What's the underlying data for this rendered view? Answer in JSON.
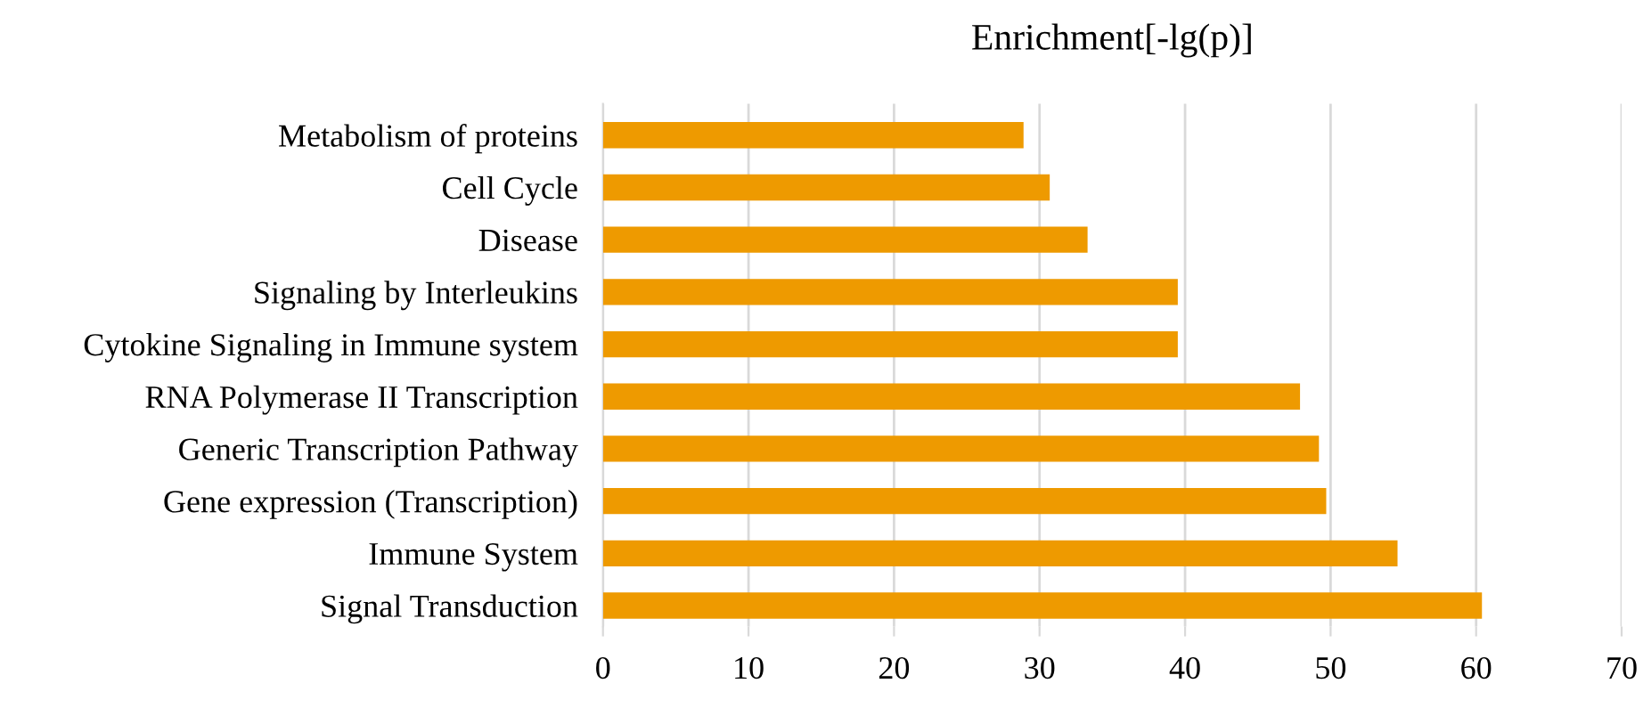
{
  "chart_data": {
    "type": "bar",
    "orientation": "horizontal",
    "title": "Enrichment[-lg(p)]",
    "categories": [
      "Metabolism of proteins",
      "Cell Cycle",
      "Disease",
      "Signaling by Interleukins",
      "Cytokine Signaling in Immune system",
      "RNA Polymerase II Transcription",
      "Generic Transcription Pathway",
      "Gene expression (Transcription)",
      "Immune System",
      "Signal Transduction"
    ],
    "values": [
      28.9,
      30.7,
      33.3,
      39.5,
      39.5,
      47.9,
      49.2,
      49.7,
      54.6,
      60.4
    ],
    "color": "#ee9a00",
    "xlim": [
      0,
      70
    ],
    "xticks": [
      0,
      10,
      20,
      30,
      40,
      50,
      60,
      70
    ],
    "grid": "x",
    "legend": false
  }
}
